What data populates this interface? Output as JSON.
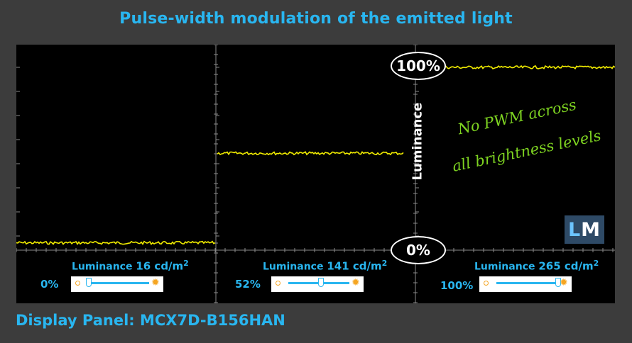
{
  "title": "Pulse-width modulation of the emitted light",
  "footer": "Display Panel: MCX7D-B156HAN",
  "axis": {
    "label": "Luminance",
    "top": "100%",
    "bottom": "0%"
  },
  "note": {
    "line1": "No PWM across",
    "line2": "all brightness levels"
  },
  "logo": {
    "l": "L",
    "m": "M"
  },
  "colors": {
    "accent": "#29b6f0",
    "trace": "#f3ee00",
    "note": "#7ed321",
    "background": "#3c3c3c"
  },
  "panels": [
    {
      "luminance_label": "Luminance",
      "luminance_value": "16 cd/m",
      "unit_sup": "2",
      "brightness": "0%"
    },
    {
      "luminance_label": "Luminance",
      "luminance_value": "141 cd/m",
      "unit_sup": "2",
      "brightness": "52%"
    },
    {
      "luminance_label": "Luminance",
      "luminance_value": "265 cd/m",
      "unit_sup": "2",
      "brightness": "100%"
    }
  ],
  "chart_data": {
    "type": "line",
    "title": "Pulse-width modulation of the emitted light",
    "ylabel": "Luminance",
    "ylim": [
      0,
      100
    ],
    "ytick_labels": [
      "0%",
      "100%"
    ],
    "grid": true,
    "series": [
      {
        "brightness_setting": 0,
        "luminance_level": 4,
        "slider_fraction": 0.0
      },
      {
        "brightness_setting": 52,
        "luminance_level": 53,
        "slider_fraction": 0.52
      },
      {
        "brightness_setting": 100,
        "luminance_level": 100,
        "slider_fraction": 1.0
      }
    ],
    "annotations": [
      "No PWM across all brightness levels"
    ]
  }
}
